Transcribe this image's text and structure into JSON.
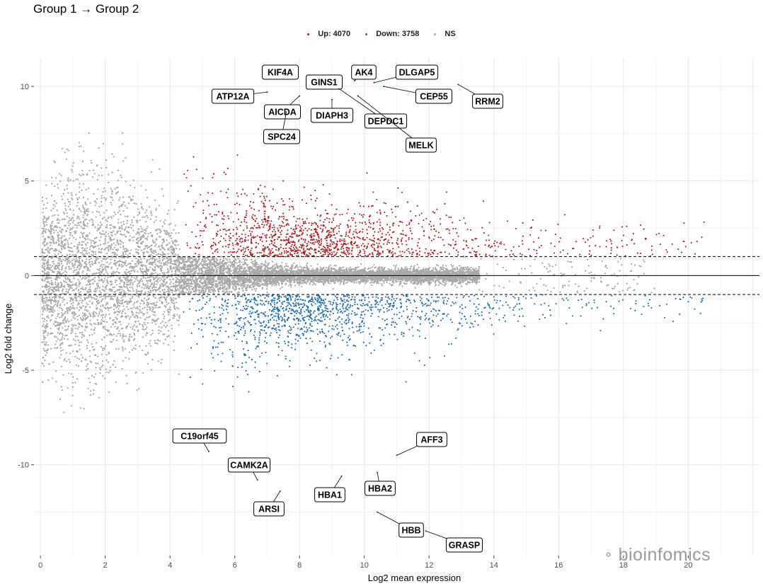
{
  "chart_data": {
    "type": "scatter",
    "title": "Group 1 → Group 2",
    "xlabel": "Log2 mean expression",
    "ylabel": "Log2 fold change",
    "xlim": [
      -0.2,
      22.2
    ],
    "ylim": [
      -14.8,
      11.5
    ],
    "x_ticks": [
      0,
      2,
      4,
      6,
      8,
      10,
      12,
      14,
      16,
      18,
      20
    ],
    "y_ticks": [
      -10,
      -5,
      0,
      5,
      10
    ],
    "grid": true,
    "legend_position": "top",
    "legend": [
      {
        "label": "Up: 4070",
        "color": "#a81d22"
      },
      {
        "label": "Down: 3758",
        "color": "#1c68a8"
      },
      {
        "label": "NS",
        "color": "#a8a8a8"
      }
    ],
    "hlines": [
      {
        "y": 0,
        "style": "solid"
      },
      {
        "y": 1,
        "style": "dashed"
      },
      {
        "y": -1,
        "style": "dashed"
      }
    ],
    "counts": {
      "up": 4070,
      "down": 3758
    },
    "labeled_genes": [
      {
        "gene": "KIF4A",
        "x": 7.7,
        "y": 10.6,
        "direction": "up"
      },
      {
        "gene": "GINS1",
        "x": 8.8,
        "y": 10.4,
        "direction": "up"
      },
      {
        "gene": "AK4",
        "x": 9.7,
        "y": 10.3,
        "direction": "up"
      },
      {
        "gene": "DLGAP5",
        "x": 10.3,
        "y": 10.2,
        "direction": "up"
      },
      {
        "gene": "ATP12A",
        "x": 7.0,
        "y": 9.7,
        "direction": "up"
      },
      {
        "gene": "CEP55",
        "x": 10.6,
        "y": 10.0,
        "direction": "up"
      },
      {
        "gene": "RRM2",
        "x": 12.9,
        "y": 10.1,
        "direction": "up"
      },
      {
        "gene": "AICDA",
        "x": 8.0,
        "y": 9.5,
        "direction": "up"
      },
      {
        "gene": "DIAPH3",
        "x": 9.0,
        "y": 9.3,
        "direction": "up"
      },
      {
        "gene": "DEPDC1",
        "x": 9.2,
        "y": 9.9,
        "direction": "up"
      },
      {
        "gene": "SPC24",
        "x": 7.6,
        "y": 8.7,
        "direction": "up"
      },
      {
        "gene": "MELK",
        "x": 9.8,
        "y": 9.5,
        "direction": "up"
      },
      {
        "gene": "C19orf45",
        "x": 5.2,
        "y": -9.3,
        "direction": "down"
      },
      {
        "gene": "AFF3",
        "x": 11.0,
        "y": -9.5,
        "direction": "down"
      },
      {
        "gene": "CAMK2A",
        "x": 6.7,
        "y": -10.8,
        "direction": "down"
      },
      {
        "gene": "HBA1",
        "x": 9.3,
        "y": -10.6,
        "direction": "down"
      },
      {
        "gene": "HBA2",
        "x": 10.4,
        "y": -10.4,
        "direction": "down"
      },
      {
        "gene": "ARSI",
        "x": 7.4,
        "y": -11.4,
        "direction": "down"
      },
      {
        "gene": "HBB",
        "x": 10.4,
        "y": -12.5,
        "direction": "down"
      },
      {
        "gene": "GRASP",
        "x": 11.9,
        "y": -13.5,
        "direction": "down"
      }
    ]
  },
  "watermark": {
    "text": "bioinfomics",
    "icon": "wechat-icon"
  }
}
